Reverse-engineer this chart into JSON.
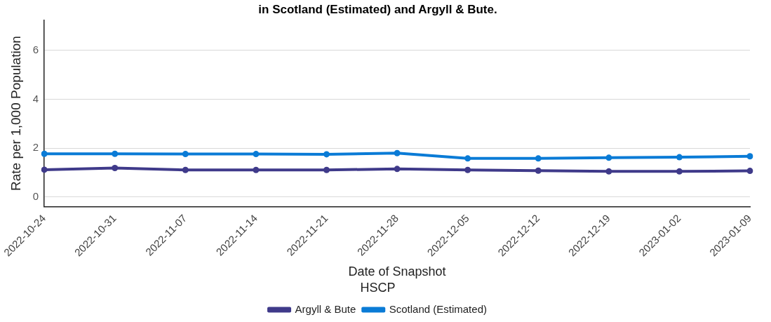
{
  "chart_data": {
    "type": "line",
    "title": "in Scotland (Estimated) and Argyll & Bute.",
    "xlabel": "Date of Snapshot",
    "ylabel": "Rate per 1,000 Population",
    "legend_title": "HSCP",
    "categories": [
      "2022-10-24",
      "2022-10-31",
      "2022-11-07",
      "2022-11-14",
      "2022-11-21",
      "2022-11-28",
      "2022-12-05",
      "2022-12-12",
      "2022-12-19",
      "2023-01-02",
      "2023-01-09"
    ],
    "series": [
      {
        "name": "Argyll & Bute",
        "color": "#3f3a8a",
        "values": [
          1.12,
          1.19,
          1.11,
          1.11,
          1.11,
          1.15,
          1.11,
          1.08,
          1.05,
          1.05,
          1.07
        ]
      },
      {
        "name": "Scotland (Estimated)",
        "color": "#0a7bd6",
        "values": [
          1.77,
          1.77,
          1.76,
          1.76,
          1.75,
          1.8,
          1.58,
          1.58,
          1.61,
          1.63,
          1.67
        ]
      }
    ],
    "ylim": [
      -0.4,
      7.25
    ],
    "yticks": [
      0,
      2,
      4,
      6
    ],
    "grid": "y",
    "legend": "bottom",
    "marker": "circle",
    "line_style": "solid"
  }
}
